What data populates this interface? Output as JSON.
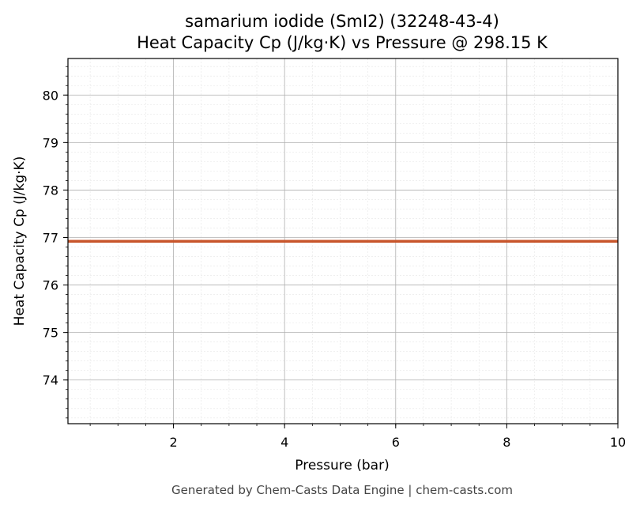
{
  "chart_data": {
    "type": "line",
    "title": "samarium iodide (SmI2) (32248-43-4)",
    "subtitle": "Heat Capacity Cp (J/kg·K) vs Pressure @ 298.15 K",
    "xlabel": "Pressure (bar)",
    "ylabel": "Heat Capacity Cp (J/kg·K)",
    "xlim": [
      0.1,
      10
    ],
    "ylim": [
      73.08,
      80.77
    ],
    "x_ticks": [
      2,
      4,
      6,
      8,
      10
    ],
    "y_ticks": [
      74,
      75,
      76,
      77,
      78,
      79,
      80
    ],
    "grid": true,
    "minor_grid": true,
    "series": [
      {
        "color": "#c8552b",
        "x": [
          0.1,
          1,
          2,
          3,
          4,
          5,
          6,
          7,
          8,
          9,
          10
        ],
        "y": [
          76.92,
          76.92,
          76.92,
          76.92,
          76.92,
          76.92,
          76.92,
          76.92,
          76.92,
          76.92,
          76.92
        ]
      }
    ]
  },
  "footer": "Generated by Chem-Casts Data Engine | chem-casts.com"
}
